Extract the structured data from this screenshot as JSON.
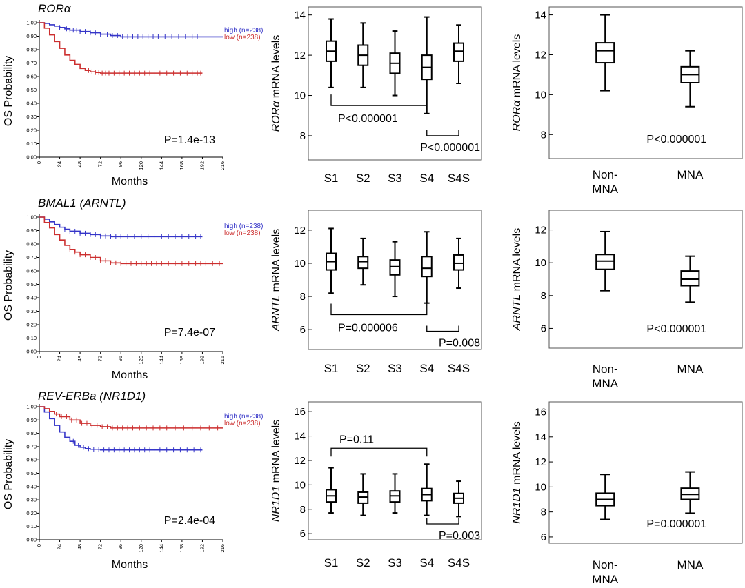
{
  "colors": {
    "high": "#3535c8",
    "low": "#cc2f2f",
    "axis": "#000000",
    "panel_border": "#555555"
  },
  "chart_data": [
    {
      "id": "km-rora",
      "type": "line",
      "kind": "kaplan-meier",
      "title": "RORα",
      "ylabel": "OS Probability",
      "xlabel": "Months",
      "xlim": [
        0,
        216
      ],
      "ylim": [
        0,
        1
      ],
      "xticks": [
        0,
        24,
        48,
        72,
        96,
        120,
        144,
        168,
        192,
        216
      ],
      "yticks": [
        0.0,
        0.1,
        0.2,
        0.3,
        0.4,
        0.5,
        0.6,
        0.7,
        0.8,
        0.9,
        1.0
      ],
      "ytick_labels": [
        "0.00",
        "0.10",
        "0.20",
        "0.30",
        "0.40",
        "0.50",
        "0.60",
        "0.70",
        "0.80",
        "0.90",
        "1.00"
      ],
      "pvalue": "P=1.4e-13",
      "series": [
        {
          "name": "high",
          "legend": "high (n=238)",
          "color_key": "high",
          "x": [
            0,
            6,
            12,
            18,
            24,
            30,
            36,
            48,
            60,
            72,
            84,
            96,
            216
          ],
          "y": [
            1.0,
            0.995,
            0.985,
            0.975,
            0.965,
            0.955,
            0.945,
            0.935,
            0.925,
            0.915,
            0.905,
            0.895,
            0.895
          ],
          "censor": [
            24,
            28,
            32,
            36,
            40,
            44,
            48,
            54,
            60,
            66,
            72,
            80,
            86,
            92,
            98,
            104,
            110,
            116,
            122,
            128,
            134,
            140,
            148,
            156,
            164,
            172,
            180,
            186
          ]
        },
        {
          "name": "low",
          "legend": "low (n=238)",
          "color_key": "low",
          "x": [
            0,
            6,
            12,
            18,
            24,
            30,
            36,
            42,
            48,
            54,
            60,
            66,
            72,
            192
          ],
          "y": [
            1.0,
            0.96,
            0.91,
            0.86,
            0.81,
            0.76,
            0.72,
            0.69,
            0.66,
            0.645,
            0.635,
            0.63,
            0.625,
            0.625
          ],
          "censor": [
            58,
            62,
            66,
            70,
            74,
            78,
            82,
            88,
            94,
            100,
            106,
            112,
            118,
            124,
            130,
            136,
            142,
            150,
            158,
            166,
            174,
            180,
            186,
            190
          ]
        }
      ]
    },
    {
      "id": "km-bmal1",
      "type": "line",
      "kind": "kaplan-meier",
      "title": "BMAL1 (ARNTL)",
      "ylabel": "OS Probability",
      "xlabel": "Months",
      "xlim": [
        0,
        216
      ],
      "ylim": [
        0,
        1
      ],
      "xticks": [
        0,
        24,
        48,
        72,
        96,
        120,
        144,
        168,
        192,
        216
      ],
      "yticks": [
        0.0,
        0.1,
        0.2,
        0.3,
        0.4,
        0.5,
        0.6,
        0.7,
        0.8,
        0.9,
        1.0
      ],
      "ytick_labels": [
        "0.00",
        "0.10",
        "0.20",
        "0.30",
        "0.40",
        "0.50",
        "0.60",
        "0.70",
        "0.80",
        "0.90",
        "1.00"
      ],
      "pvalue": "P=7.4e-07",
      "series": [
        {
          "name": "high",
          "legend": "high (n=238)",
          "color_key": "high",
          "x": [
            0,
            6,
            12,
            18,
            24,
            30,
            36,
            48,
            60,
            72,
            84,
            192
          ],
          "y": [
            1.0,
            0.985,
            0.965,
            0.945,
            0.925,
            0.91,
            0.895,
            0.88,
            0.87,
            0.86,
            0.855,
            0.855
          ],
          "censor": [
            30,
            36,
            42,
            48,
            54,
            60,
            66,
            72,
            78,
            84,
            90,
            96,
            104,
            112,
            120,
            128,
            136,
            144,
            152,
            160,
            168,
            176,
            184,
            190
          ]
        },
        {
          "name": "low",
          "legend": "low (n=238)",
          "color_key": "low",
          "x": [
            0,
            6,
            12,
            18,
            24,
            30,
            36,
            42,
            48,
            60,
            72,
            84,
            96,
            216
          ],
          "y": [
            1.0,
            0.96,
            0.92,
            0.87,
            0.83,
            0.79,
            0.76,
            0.74,
            0.72,
            0.7,
            0.675,
            0.66,
            0.655,
            0.655
          ],
          "censor": [
            36,
            42,
            48,
            54,
            60,
            66,
            72,
            78,
            84,
            90,
            96,
            102,
            108,
            114,
            120,
            126,
            132,
            138,
            144,
            152,
            160,
            168,
            176,
            184,
            190,
            196,
            204,
            212
          ]
        }
      ]
    },
    {
      "id": "km-reverba",
      "type": "line",
      "kind": "kaplan-meier",
      "title": "REV-ERBa (NR1D1)",
      "ylabel": "OS Probability",
      "xlabel": "Months",
      "xlim": [
        0,
        216
      ],
      "ylim": [
        0,
        1
      ],
      "xticks": [
        0,
        24,
        48,
        72,
        96,
        120,
        144,
        168,
        192,
        216
      ],
      "yticks": [
        0.0,
        0.1,
        0.2,
        0.3,
        0.4,
        0.5,
        0.6,
        0.7,
        0.8,
        0.9,
        1.0
      ],
      "ytick_labels": [
        "0.00",
        "0.10",
        "0.20",
        "0.30",
        "0.40",
        "0.50",
        "0.60",
        "0.70",
        "0.80",
        "0.90",
        "1.00"
      ],
      "pvalue": "P=2.4e-04",
      "series": [
        {
          "name": "high",
          "legend": "high (n=238)",
          "color_key": "high",
          "x": [
            0,
            6,
            12,
            18,
            24,
            30,
            36,
            42,
            48,
            54,
            60,
            72,
            192
          ],
          "y": [
            1.0,
            0.96,
            0.91,
            0.86,
            0.81,
            0.77,
            0.74,
            0.71,
            0.695,
            0.685,
            0.68,
            0.675,
            0.675
          ],
          "censor": [
            40,
            46,
            52,
            58,
            64,
            70,
            76,
            82,
            88,
            94,
            100,
            106,
            112,
            118,
            124,
            130,
            136,
            142,
            150,
            158,
            166,
            174,
            182,
            190
          ]
        },
        {
          "name": "low",
          "legend": "low (n=238)",
          "color_key": "low",
          "x": [
            0,
            6,
            12,
            18,
            24,
            36,
            48,
            60,
            72,
            84,
            216
          ],
          "y": [
            1.0,
            0.985,
            0.965,
            0.945,
            0.925,
            0.9,
            0.875,
            0.86,
            0.85,
            0.84,
            0.84
          ],
          "censor": [
            20,
            26,
            32,
            38,
            44,
            50,
            56,
            62,
            68,
            74,
            80,
            86,
            92,
            98,
            104,
            110,
            118,
            126,
            134,
            142,
            150,
            160,
            170,
            180,
            190,
            200,
            210
          ]
        }
      ]
    },
    {
      "id": "box-rora-stage",
      "type": "box",
      "ylabel_italic": "RORα",
      "ylabel_rest": " mRNA levels",
      "categories": [
        "S1",
        "S2",
        "S3",
        "S4",
        "S4S"
      ],
      "ylim": [
        6.8,
        14.4
      ],
      "yticks": [
        8,
        10,
        12,
        14
      ],
      "boxes": [
        {
          "min": 10.4,
          "q1": 11.7,
          "median": 12.2,
          "q3": 12.7,
          "max": 13.8
        },
        {
          "min": 10.4,
          "q1": 11.5,
          "median": 12.0,
          "q3": 12.5,
          "max": 13.6
        },
        {
          "min": 10.0,
          "q1": 11.1,
          "median": 11.6,
          "q3": 12.1,
          "max": 13.2
        },
        {
          "min": 9.1,
          "q1": 10.8,
          "median": 11.4,
          "q3": 12.0,
          "max": 13.9
        },
        {
          "min": 10.6,
          "q1": 11.7,
          "median": 12.2,
          "q3": 12.6,
          "max": 13.5
        }
      ],
      "comparisons": [
        {
          "from": 0,
          "to": 3,
          "y": 9.5,
          "dir": "down",
          "label": "P<0.000001",
          "label_pos": "below-left"
        },
        {
          "from": 3,
          "to": 4,
          "y": 8.0,
          "dir": "up",
          "label": "P<0.000001",
          "label_pos": "below-right"
        }
      ]
    },
    {
      "id": "box-rora-mna",
      "type": "box",
      "ylabel_italic": "RORα",
      "ylabel_rest": " mRNA levels",
      "categories": [
        "Non-MNA",
        "MNA"
      ],
      "category_lines": [
        [
          "Non-",
          "MNA"
        ],
        [
          "MNA"
        ]
      ],
      "ylim": [
        6.8,
        14.4
      ],
      "yticks": [
        8,
        10,
        12,
        14
      ],
      "boxes": [
        {
          "min": 10.2,
          "q1": 11.6,
          "median": 12.2,
          "q3": 12.6,
          "max": 14.0
        },
        {
          "min": 9.4,
          "q1": 10.6,
          "median": 11.0,
          "q3": 11.4,
          "max": 12.2
        }
      ],
      "annotation": "P<0.000001"
    },
    {
      "id": "box-arntl-stage",
      "type": "box",
      "ylabel_italic": "ARNTL",
      "ylabel_rest": " mRNA levels",
      "categories": [
        "S1",
        "S2",
        "S3",
        "S4",
        "S4S"
      ],
      "ylim": [
        4.8,
        13.2
      ],
      "yticks": [
        6,
        8,
        10,
        12
      ],
      "boxes": [
        {
          "min": 8.2,
          "q1": 9.6,
          "median": 10.1,
          "q3": 10.6,
          "max": 12.1
        },
        {
          "min": 8.7,
          "q1": 9.7,
          "median": 10.1,
          "q3": 10.4,
          "max": 11.5
        },
        {
          "min": 8.0,
          "q1": 9.3,
          "median": 9.8,
          "q3": 10.2,
          "max": 11.3
        },
        {
          "min": 7.6,
          "q1": 9.2,
          "median": 9.7,
          "q3": 10.4,
          "max": 11.9
        },
        {
          "min": 8.5,
          "q1": 9.6,
          "median": 10.0,
          "q3": 10.5,
          "max": 11.5
        }
      ],
      "comparisons": [
        {
          "from": 0,
          "to": 3,
          "y": 6.9,
          "dir": "down",
          "label": "P=0.000006",
          "label_pos": "below-left"
        },
        {
          "from": 3,
          "to": 4,
          "y": 5.9,
          "dir": "up",
          "label": "P=0.008",
          "label_pos": "below-right"
        }
      ]
    },
    {
      "id": "box-arntl-mna",
      "type": "box",
      "ylabel_italic": "ARNTL",
      "ylabel_rest": " mRNA levels",
      "categories": [
        "Non-MNA",
        "MNA"
      ],
      "category_lines": [
        [
          "Non-",
          "MNA"
        ],
        [
          "MNA"
        ]
      ],
      "ylim": [
        4.8,
        13.2
      ],
      "yticks": [
        6,
        8,
        10,
        12
      ],
      "boxes": [
        {
          "min": 8.3,
          "q1": 9.6,
          "median": 10.1,
          "q3": 10.5,
          "max": 11.9
        },
        {
          "min": 7.6,
          "q1": 8.6,
          "median": 9.0,
          "q3": 9.5,
          "max": 10.4
        }
      ],
      "annotation": "P<0.000001"
    },
    {
      "id": "box-nr1d1-stage",
      "type": "box",
      "ylabel_italic": "NR1D1",
      "ylabel_rest": " mRNA levels",
      "categories": [
        "S1",
        "S2",
        "S3",
        "S4",
        "S4S"
      ],
      "ylim": [
        5.5,
        16.8
      ],
      "yticks": [
        6,
        8,
        10,
        12,
        14,
        16
      ],
      "boxes": [
        {
          "min": 7.7,
          "q1": 8.6,
          "median": 9.1,
          "q3": 9.6,
          "max": 11.4
        },
        {
          "min": 7.5,
          "q1": 8.5,
          "median": 9.0,
          "q3": 9.4,
          "max": 10.9
        },
        {
          "min": 7.7,
          "q1": 8.6,
          "median": 9.1,
          "q3": 9.5,
          "max": 10.9
        },
        {
          "min": 7.5,
          "q1": 8.7,
          "median": 9.2,
          "q3": 9.7,
          "max": 11.7
        },
        {
          "min": 7.4,
          "q1": 8.5,
          "median": 8.9,
          "q3": 9.3,
          "max": 10.3
        }
      ],
      "comparisons": [
        {
          "from": 0,
          "to": 3,
          "y": 13.0,
          "dir": "up",
          "label": "P=0.11",
          "label_pos": "above-left"
        },
        {
          "from": 3,
          "to": 4,
          "y": 6.8,
          "dir": "up",
          "label": "P=0.003",
          "label_pos": "below-right"
        }
      ]
    },
    {
      "id": "box-nr1d1-mna",
      "type": "box",
      "ylabel_italic": "NR1D1",
      "ylabel_rest": " mRNA levels",
      "categories": [
        "Non-MNA",
        "MNA"
      ],
      "category_lines": [
        [
          "Non-",
          "MNA"
        ],
        [
          "MNA"
        ]
      ],
      "ylim": [
        5.5,
        16.8
      ],
      "yticks": [
        6,
        8,
        10,
        12,
        14,
        16
      ],
      "boxes": [
        {
          "min": 7.4,
          "q1": 8.5,
          "median": 9.0,
          "q3": 9.5,
          "max": 11.0
        },
        {
          "min": 7.9,
          "q1": 9.0,
          "median": 9.4,
          "q3": 9.9,
          "max": 11.2
        }
      ],
      "annotation": "P=0.000001"
    }
  ]
}
